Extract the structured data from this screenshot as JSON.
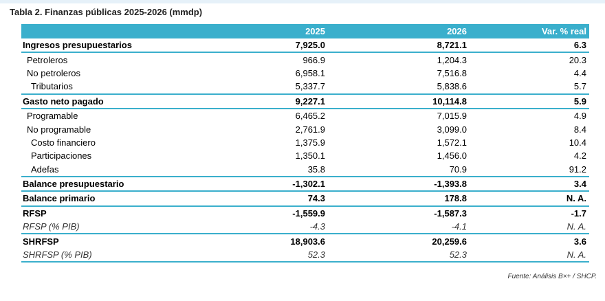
{
  "title": "Tabla 2. Finanzas públicas 2025-2026 (mmdp)",
  "headers": {
    "label": "",
    "y2025": "2025",
    "y2026": "2026",
    "var": "Var. % real"
  },
  "rows": [
    {
      "label": "Ingresos presupuestarios",
      "y2025": "7,925.0",
      "y2026": "8,721.1",
      "var": "6.3"
    },
    {
      "label": "Petroleros",
      "y2025": "966.9",
      "y2026": "1,204.3",
      "var": "20.3"
    },
    {
      "label": "No petroleros",
      "y2025": "6,958.1",
      "y2026": "7,516.8",
      "var": "4.4"
    },
    {
      "label": "Tributarios",
      "y2025": "5,337.7",
      "y2026": "5,838.6",
      "var": "5.7"
    },
    {
      "label": "Gasto neto pagado",
      "y2025": "9,227.1",
      "y2026": "10,114.8",
      "var": "5.9"
    },
    {
      "label": "Programable",
      "y2025": "6,465.2",
      "y2026": "7,015.9",
      "var": "4.9"
    },
    {
      "label": "No programable",
      "y2025": "2,761.9",
      "y2026": "3,099.0",
      "var": "8.4"
    },
    {
      "label": "Costo financiero",
      "y2025": "1,375.9",
      "y2026": "1,572.1",
      "var": "10.4"
    },
    {
      "label": "Participaciones",
      "y2025": "1,350.1",
      "y2026": "1,456.0",
      "var": "4.2"
    },
    {
      "label": "Adefas",
      "y2025": "35.8",
      "y2026": "70.9",
      "var": "91.2"
    },
    {
      "label": "Balance presupuestario",
      "y2025": "-1,302.1",
      "y2026": "-1,393.8",
      "var": "3.4"
    },
    {
      "label": "Balance primario",
      "y2025": "74.3",
      "y2026": "178.8",
      "var": "N. A."
    },
    {
      "label": "RFSP",
      "y2025": "-1,559.9",
      "y2026": "-1,587.3",
      "var": "-1.7"
    },
    {
      "label": "RFSP (% PIB)",
      "y2025": "-4.3",
      "y2026": "-4.1",
      "var": "N. A."
    },
    {
      "label": "SHRFSP",
      "y2025": "18,903.6",
      "y2026": "20,259.6",
      "var": "3.6"
    },
    {
      "label": "SHRFSP (% PIB)",
      "y2025": "52.3",
      "y2026": "52.3",
      "var": "N. A."
    }
  ],
  "source": "Fuente: Análisis B×+ / SHCP."
}
